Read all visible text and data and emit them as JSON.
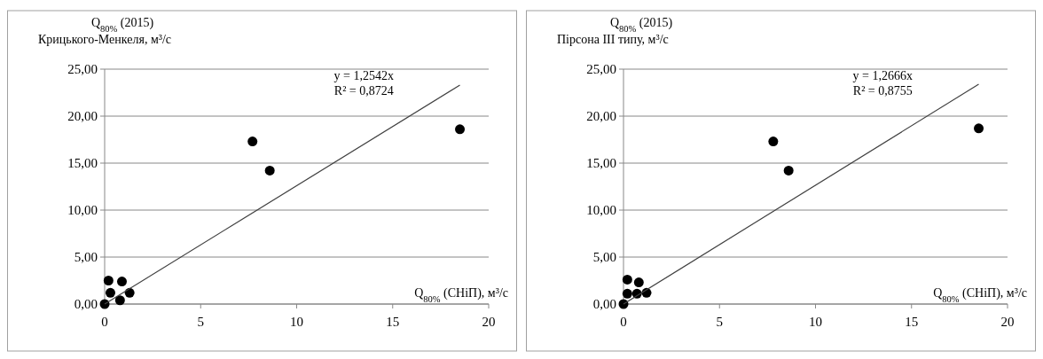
{
  "chart_data": [
    {
      "type": "scatter",
      "ylabel": "Q$_{80%}$ (2015)\nКрицького-Менкеля, м³/с",
      "xlabel": "Q$_{80%}$ (СНіП), м³/с",
      "annotations": [
        "y = 1,2542x\nR² = 0,8724"
      ],
      "xlim": [
        0,
        20
      ],
      "xticks": [
        0,
        5,
        10,
        15,
        20
      ],
      "ylim": [
        0,
        25
      ],
      "yticks": [
        {
          "value": 0,
          "label": "0,00"
        },
        {
          "value": 5,
          "label": "5,00"
        },
        {
          "value": 10,
          "label": "10,00"
        },
        {
          "value": 15,
          "label": "15,00"
        },
        {
          "value": 20,
          "label": "20,00"
        },
        {
          "value": 25,
          "label": "25,00"
        }
      ],
      "grid": "y",
      "marker": "circle",
      "series": [
        {
          "color": "#000000",
          "x": [
            18.5,
            7.7,
            8.6,
            0.2,
            0.9,
            1.3,
            0.3,
            0,
            0.8
          ],
          "values": [
            18.6,
            17.3,
            14.2,
            2.5,
            2.4,
            1.2,
            1.2,
            0,
            0.4
          ]
        },
        {
          "type": "line",
          "color": "#404040",
          "marker": "none",
          "x": [
            0,
            18.5
          ],
          "values": [
            0,
            23.3
          ]
        }
      ]
    },
    {
      "type": "scatter",
      "ylabel": "Q$_{80%}$ (2015)\nПірсона ІІІ типу, м³/с",
      "xlabel": "Q$_{80%}$ (СНіП), м³/с",
      "annotations": [
        "y = 1,2666x\nR² = 0,8755"
      ],
      "xlim": [
        0,
        20
      ],
      "xticks": [
        0,
        5,
        10,
        15,
        20
      ],
      "ylim": [
        0,
        25
      ],
      "yticks": [
        {
          "value": 0,
          "label": "0,00"
        },
        {
          "value": 5,
          "label": "5,00"
        },
        {
          "value": 10,
          "label": "10,00"
        },
        {
          "value": 15,
          "label": "15,00"
        },
        {
          "value": 20,
          "label": "20,00"
        },
        {
          "value": 25,
          "label": "25,00"
        }
      ],
      "grid": "y",
      "marker": "circle",
      "series": [
        {
          "color": "#000000",
          "x": [
            18.5,
            7.8,
            8.6,
            0.2,
            0.8,
            1.2,
            0.2,
            0.7,
            0
          ],
          "values": [
            18.7,
            17.3,
            14.2,
            2.6,
            2.3,
            1.2,
            1.1,
            1.1,
            0
          ]
        },
        {
          "type": "line",
          "color": "#404040",
          "marker": "none",
          "x": [
            0,
            18.5
          ],
          "values": [
            0,
            23.4
          ]
        }
      ]
    }
  ]
}
